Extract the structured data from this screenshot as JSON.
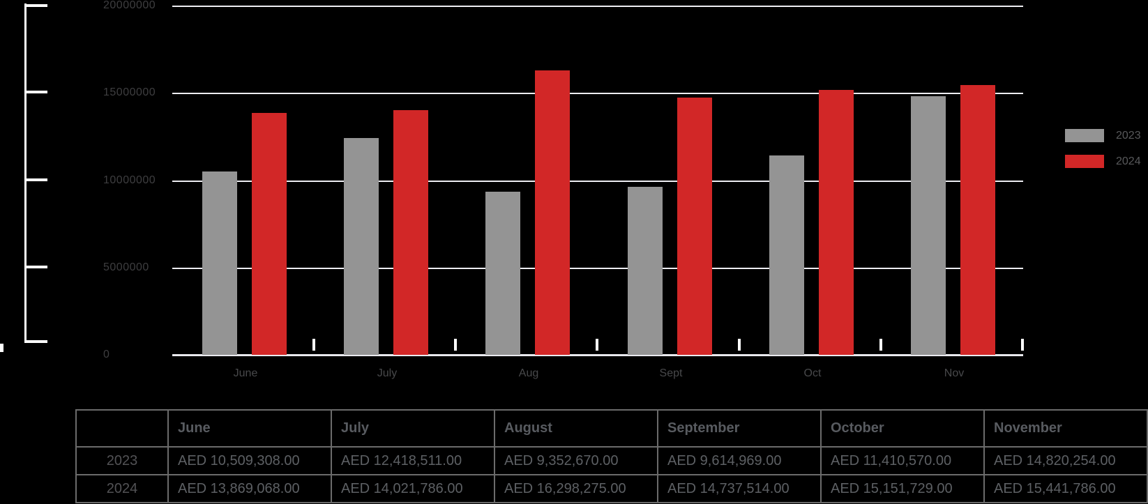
{
  "chart_data": {
    "type": "bar",
    "title": "",
    "xlabel": "",
    "ylabel": "",
    "categories": [
      "June",
      "July",
      "Aug",
      "Sept",
      "Oct",
      "Nov"
    ],
    "series": [
      {
        "name": "2023",
        "color": "#949494",
        "values": [
          10509308,
          12418511,
          9352670,
          9614969,
          11410570,
          14820254
        ]
      },
      {
        "name": "2024",
        "color": "#d22727",
        "values": [
          13869068,
          14021786,
          16298275,
          14737514,
          15151729,
          15441786
        ]
      }
    ],
    "ylim": [
      0,
      20000000
    ],
    "yticks": [
      0,
      5000000,
      10000000,
      15000000,
      20000000
    ],
    "ytick_labels": [
      "0",
      "5000000",
      "10000000",
      "15000000",
      "20000000"
    ],
    "grid": "horizontal-white-lines",
    "legend_position": "right",
    "legend_entries": [
      "2023",
      "2024"
    ]
  },
  "table": {
    "corner_header": "",
    "columns": [
      "June",
      "July",
      "August",
      "September",
      "October",
      "November"
    ],
    "rows": [
      {
        "label": "2023",
        "values": [
          "AED 10,509,308.00",
          "AED 12,418,511.00",
          "AED 9,352,670.00",
          "AED 9,614,969.00",
          "AED 11,410,570.00",
          "AED 14,820,254.00"
        ]
      },
      {
        "label": "2024",
        "values": [
          "AED 13,869,068.00",
          "AED 14,021,786.00",
          "AED 16,298,275.00",
          "AED 14,737,514.00",
          "AED 15,151,729.00",
          "AED 15,441,786.00"
        ]
      }
    ]
  },
  "colors": {
    "background": "#000000",
    "bar_2023": "#949494",
    "bar_2024": "#d22727",
    "gridline": "#ededf2",
    "axis_bracket": "#ffffff",
    "y_label_text": "#3e3e40",
    "x_label_text": "#48494b",
    "legend_text": "#58595b",
    "table_border": "#6b6b6b",
    "table_text": "#5d6064"
  }
}
